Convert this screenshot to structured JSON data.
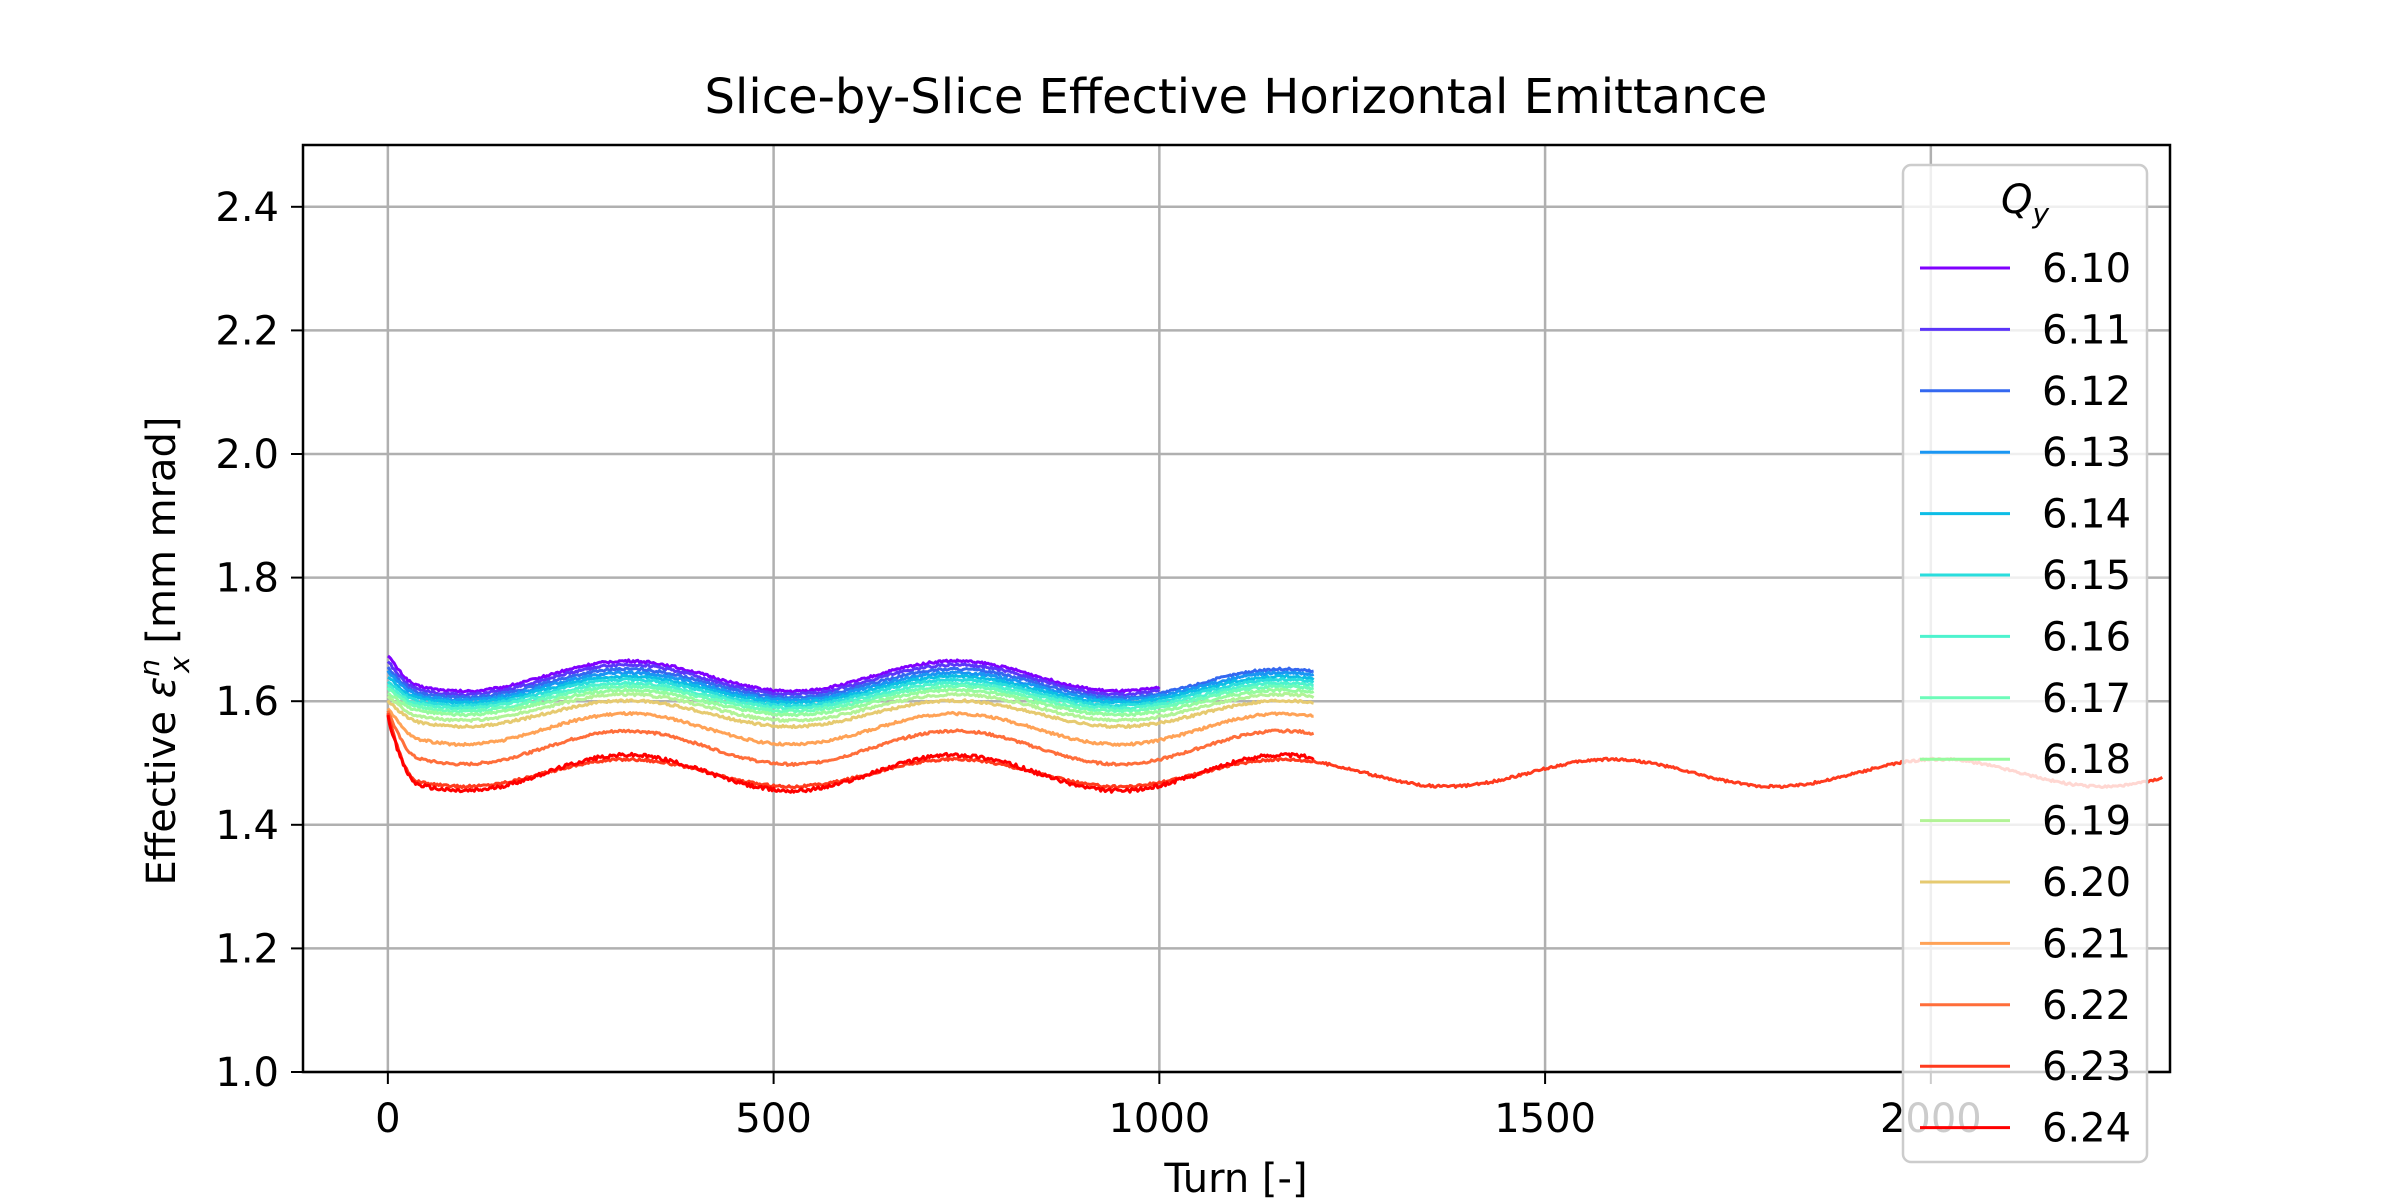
{
  "chart_data": {
    "type": "line",
    "title": "Slice-by-Slice Effective Horizontal Emittance",
    "xlabel": "Turn [-]",
    "ylabel": {
      "prefix": "Effective ",
      "symbol": "ε",
      "subscript": "x",
      "superscript": "n",
      "suffix": " [mm mrad]"
    },
    "xlim": [
      -110,
      2310
    ],
    "ylim": [
      1.0,
      2.5
    ],
    "xticks": [
      0,
      500,
      1000,
      1500,
      2000
    ],
    "yticks": [
      1.0,
      1.2,
      1.4,
      1.6,
      1.8,
      2.0,
      2.2,
      2.4
    ],
    "grid": true,
    "legend": {
      "title": "Q",
      "title_subscript": "y",
      "placement": "upper-right"
    },
    "series": [
      {
        "name": "6.10",
        "color": "#8000ff",
        "x_end": 1000,
        "y_start": 1.675,
        "offset": 1.6405,
        "amp": 0.0245,
        "noise": 0.004
      },
      {
        "name": "6.11",
        "color": "#5b35f9",
        "x_end": 1000,
        "y_start": 1.665,
        "offset": 1.635,
        "amp": 0.024,
        "noise": 0.004
      },
      {
        "name": "6.12",
        "color": "#3468f0",
        "x_end": 1200,
        "y_start": 1.655,
        "offset": 1.629,
        "amp": 0.023,
        "noise": 0.004
      },
      {
        "name": "6.13",
        "color": "#1996f3",
        "x_end": 1200,
        "y_start": 1.648,
        "offset": 1.624,
        "amp": 0.022,
        "noise": 0.004
      },
      {
        "name": "6.14",
        "color": "#0cbde6",
        "x_end": 1200,
        "y_start": 1.64,
        "offset": 1.619,
        "amp": 0.021,
        "noise": 0.004
      },
      {
        "name": "6.15",
        "color": "#2adddd",
        "x_end": 1200,
        "y_start": 1.632,
        "offset": 1.614,
        "amp": 0.021,
        "noise": 0.004
      },
      {
        "name": "6.16",
        "color": "#4df3ce",
        "x_end": 1200,
        "y_start": 1.626,
        "offset": 1.609,
        "amp": 0.02,
        "noise": 0.004
      },
      {
        "name": "6.17",
        "color": "#6cfcb9",
        "x_end": 1200,
        "y_start": 1.62,
        "offset": 1.604,
        "amp": 0.02,
        "noise": 0.004
      },
      {
        "name": "6.18",
        "color": "#95fb9e",
        "x_end": 1200,
        "y_start": 1.614,
        "offset": 1.598,
        "amp": 0.02,
        "noise": 0.004
      },
      {
        "name": "6.19",
        "color": "#b2f396",
        "x_end": 1200,
        "y_start": 1.608,
        "offset": 1.59,
        "amp": 0.021,
        "noise": 0.004
      },
      {
        "name": "6.20",
        "color": "#e6ca70",
        "x_end": 1200,
        "y_start": 1.6,
        "offset": 1.58,
        "amp": 0.021,
        "noise": 0.004
      },
      {
        "name": "6.21",
        "color": "#ffa256",
        "x_end": 1200,
        "y_start": 1.59,
        "offset": 1.555,
        "amp": 0.025,
        "noise": 0.004
      },
      {
        "name": "6.22",
        "color": "#ff6e3a",
        "x_end": 1200,
        "y_start": 1.585,
        "offset": 1.525,
        "amp": 0.027,
        "noise": 0.004
      },
      {
        "name": "6.23",
        "color": "#ff3b1e",
        "x_end": 2300,
        "y_start": 1.58,
        "offset": 1.484,
        "amp": 0.022,
        "noise": 0.004
      },
      {
        "name": "6.24",
        "color": "#ff0000",
        "x_end": 1200,
        "y_start": 1.575,
        "offset": 1.484,
        "amp": 0.029,
        "noise": 0.006
      }
    ],
    "wave_period": 425
  }
}
